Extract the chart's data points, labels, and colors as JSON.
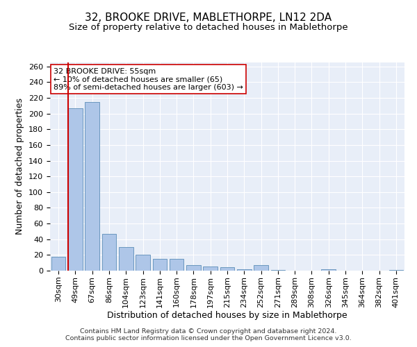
{
  "title": "32, BROOKE DRIVE, MABLETHORPE, LN12 2DA",
  "subtitle": "Size of property relative to detached houses in Mablethorpe",
  "xlabel": "Distribution of detached houses by size in Mablethorpe",
  "ylabel": "Number of detached properties",
  "categories": [
    "30sqm",
    "49sqm",
    "67sqm",
    "86sqm",
    "104sqm",
    "123sqm",
    "141sqm",
    "160sqm",
    "178sqm",
    "197sqm",
    "215sqm",
    "234sqm",
    "252sqm",
    "271sqm",
    "289sqm",
    "308sqm",
    "326sqm",
    "345sqm",
    "364sqm",
    "382sqm",
    "401sqm"
  ],
  "values": [
    18,
    207,
    215,
    47,
    30,
    20,
    15,
    15,
    7,
    5,
    4,
    2,
    7,
    1,
    0,
    0,
    2,
    0,
    0,
    0,
    1
  ],
  "bar_color": "#aec6e8",
  "bar_edgecolor": "#5b8db8",
  "property_line_color": "#cc0000",
  "property_line_xindex": 1,
  "background_color": "#e8eef8",
  "annotation_line1": "32 BROOKE DRIVE: 55sqm",
  "annotation_line2": "← 10% of detached houses are smaller (65)",
  "annotation_line3": "89% of semi-detached houses are larger (603) →",
  "annotation_box_color": "#ffffff",
  "annotation_box_edgecolor": "#cc0000",
  "ylim": [
    0,
    265
  ],
  "yticks": [
    0,
    20,
    40,
    60,
    80,
    100,
    120,
    140,
    160,
    180,
    200,
    220,
    240,
    260
  ],
  "title_fontsize": 11,
  "subtitle_fontsize": 9.5,
  "axis_label_fontsize": 9,
  "tick_fontsize": 8,
  "annotation_fontsize": 8,
  "footnote_fontsize": 6.8,
  "footnote": "Contains HM Land Registry data © Crown copyright and database right 2024.\nContains public sector information licensed under the Open Government Licence v3.0."
}
